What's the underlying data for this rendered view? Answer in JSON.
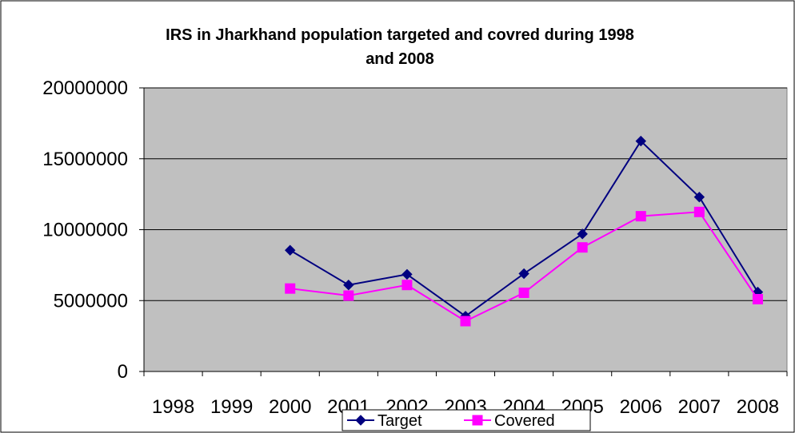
{
  "chart_data": {
    "type": "line",
    "title_lines": [
      "IRS in Jharkhand population targeted and covred during 1998",
      "and 2008"
    ],
    "categories": [
      "1998",
      "1999",
      "2000",
      "2001",
      "2002",
      "2003",
      "2004",
      "2005",
      "2006",
      "2007",
      "2008"
    ],
    "ylim": [
      0,
      20000000
    ],
    "y_ticks": [
      "0",
      "5000000",
      "10000000",
      "15000000",
      "20000000"
    ],
    "grid": true,
    "legend_position": "bottom",
    "series": [
      {
        "name": "Target",
        "color": "#000080",
        "marker": "diamond",
        "values": [
          null,
          null,
          8550000,
          6100000,
          6850000,
          3900000,
          6900000,
          9700000,
          16250000,
          12300000,
          5600000
        ]
      },
      {
        "name": "Covered",
        "color": "#FF00FF",
        "marker": "square",
        "values": [
          null,
          null,
          5850000,
          5350000,
          6100000,
          3550000,
          5550000,
          8750000,
          10950000,
          11250000,
          5100000
        ]
      }
    ],
    "plot_background": "#C0C0C0",
    "gridline_color": "#000000"
  }
}
